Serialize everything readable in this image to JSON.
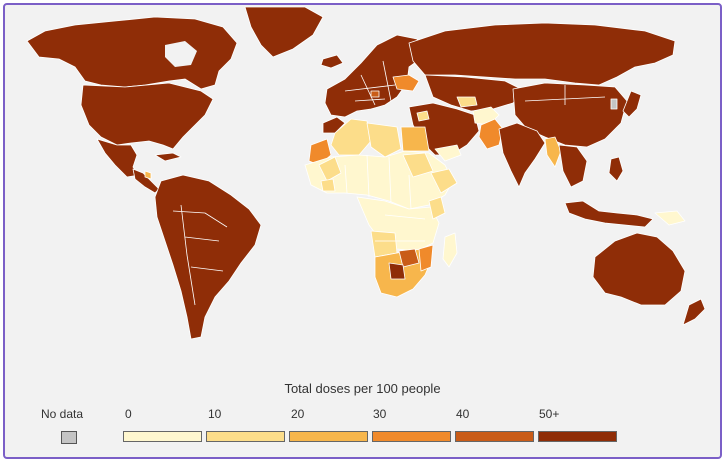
{
  "legend": {
    "title": "Total doses per 100 people",
    "no_data_label": "No data",
    "no_data_color": "#c4c4c4",
    "bins": [
      {
        "label": "0",
        "color": "#fff7cf"
      },
      {
        "label": "10",
        "color": "#fcdd8a"
      },
      {
        "label": "20",
        "color": "#f7b64c"
      },
      {
        "label": "30",
        "color": "#f08a2b"
      },
      {
        "label": "40",
        "color": "#c95c18"
      },
      {
        "label": "50+",
        "color": "#8f2d07"
      }
    ]
  },
  "map": {
    "background_color": "#f2f2f2",
    "border_color": "#ffffff"
  }
}
